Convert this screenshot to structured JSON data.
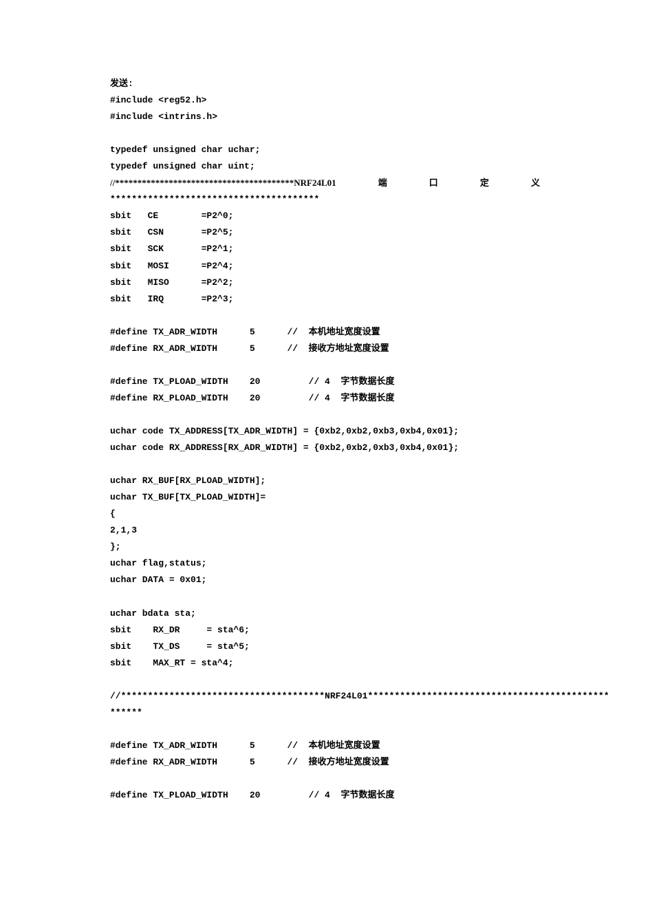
{
  "text_color": "#000000",
  "bg_color": "#ffffff",
  "font_family": "SimSun",
  "font_size_pt": 10,
  "lines": {
    "l01": "发送:",
    "l02": "#include <reg52.h>",
    "l03": "#include <intrins.h>",
    "l04": "typedef unsigned char uchar;",
    "l05": "typedef unsigned char uint;",
    "l06a": "//****************************************NRF24L01",
    "l06b": "端",
    "l06c": "口",
    "l06d": "定",
    "l06e": "义",
    "l07": "***************************************",
    "l08": "sbit   CE        =P2^0;",
    "l09": "sbit   CSN       =P2^5;",
    "l10": "sbit   SCK       =P2^1;",
    "l11": "sbit   MOSI      =P2^4;",
    "l12": "sbit   MISO      =P2^2;",
    "l13": "sbit   IRQ       =P2^3;",
    "l14": "#define TX_ADR_WIDTH      5      //  本机地址宽度设置",
    "l15": "#define RX_ADR_WIDTH      5      //  接收方地址宽度设置",
    "l16": "#define TX_PLOAD_WIDTH    20         // 4  字节数据长度",
    "l17": "#define RX_PLOAD_WIDTH    20         // 4  字节数据长度",
    "l18": "uchar code TX_ADDRESS[TX_ADR_WIDTH] = {0xb2,0xb2,0xb3,0xb4,0x01};",
    "l19": "uchar code RX_ADDRESS[RX_ADR_WIDTH] = {0xb2,0xb2,0xb3,0xb4,0x01};",
    "l20": "uchar RX_BUF[RX_PLOAD_WIDTH];",
    "l21": "uchar TX_BUF[TX_PLOAD_WIDTH]=",
    "l22": "{",
    "l23": "2,1,3",
    "l24": "};",
    "l25": "uchar flag,status;",
    "l26": "uchar DATA = 0x01;",
    "l27": "uchar bdata sta;",
    "l28": "sbit    RX_DR     = sta^6;",
    "l29": "sbit    TX_DS     = sta^5;",
    "l30": "sbit    MAX_RT = sta^4;",
    "l31": "//**************************************NRF24L01*********************************************",
    "l32": "******",
    "l33": "#define TX_ADR_WIDTH      5      //  本机地址宽度设置",
    "l34": "#define RX_ADR_WIDTH      5      //  接收方地址宽度设置",
    "l35": "#define TX_PLOAD_WIDTH    20         // 4  字节数据长度"
  }
}
